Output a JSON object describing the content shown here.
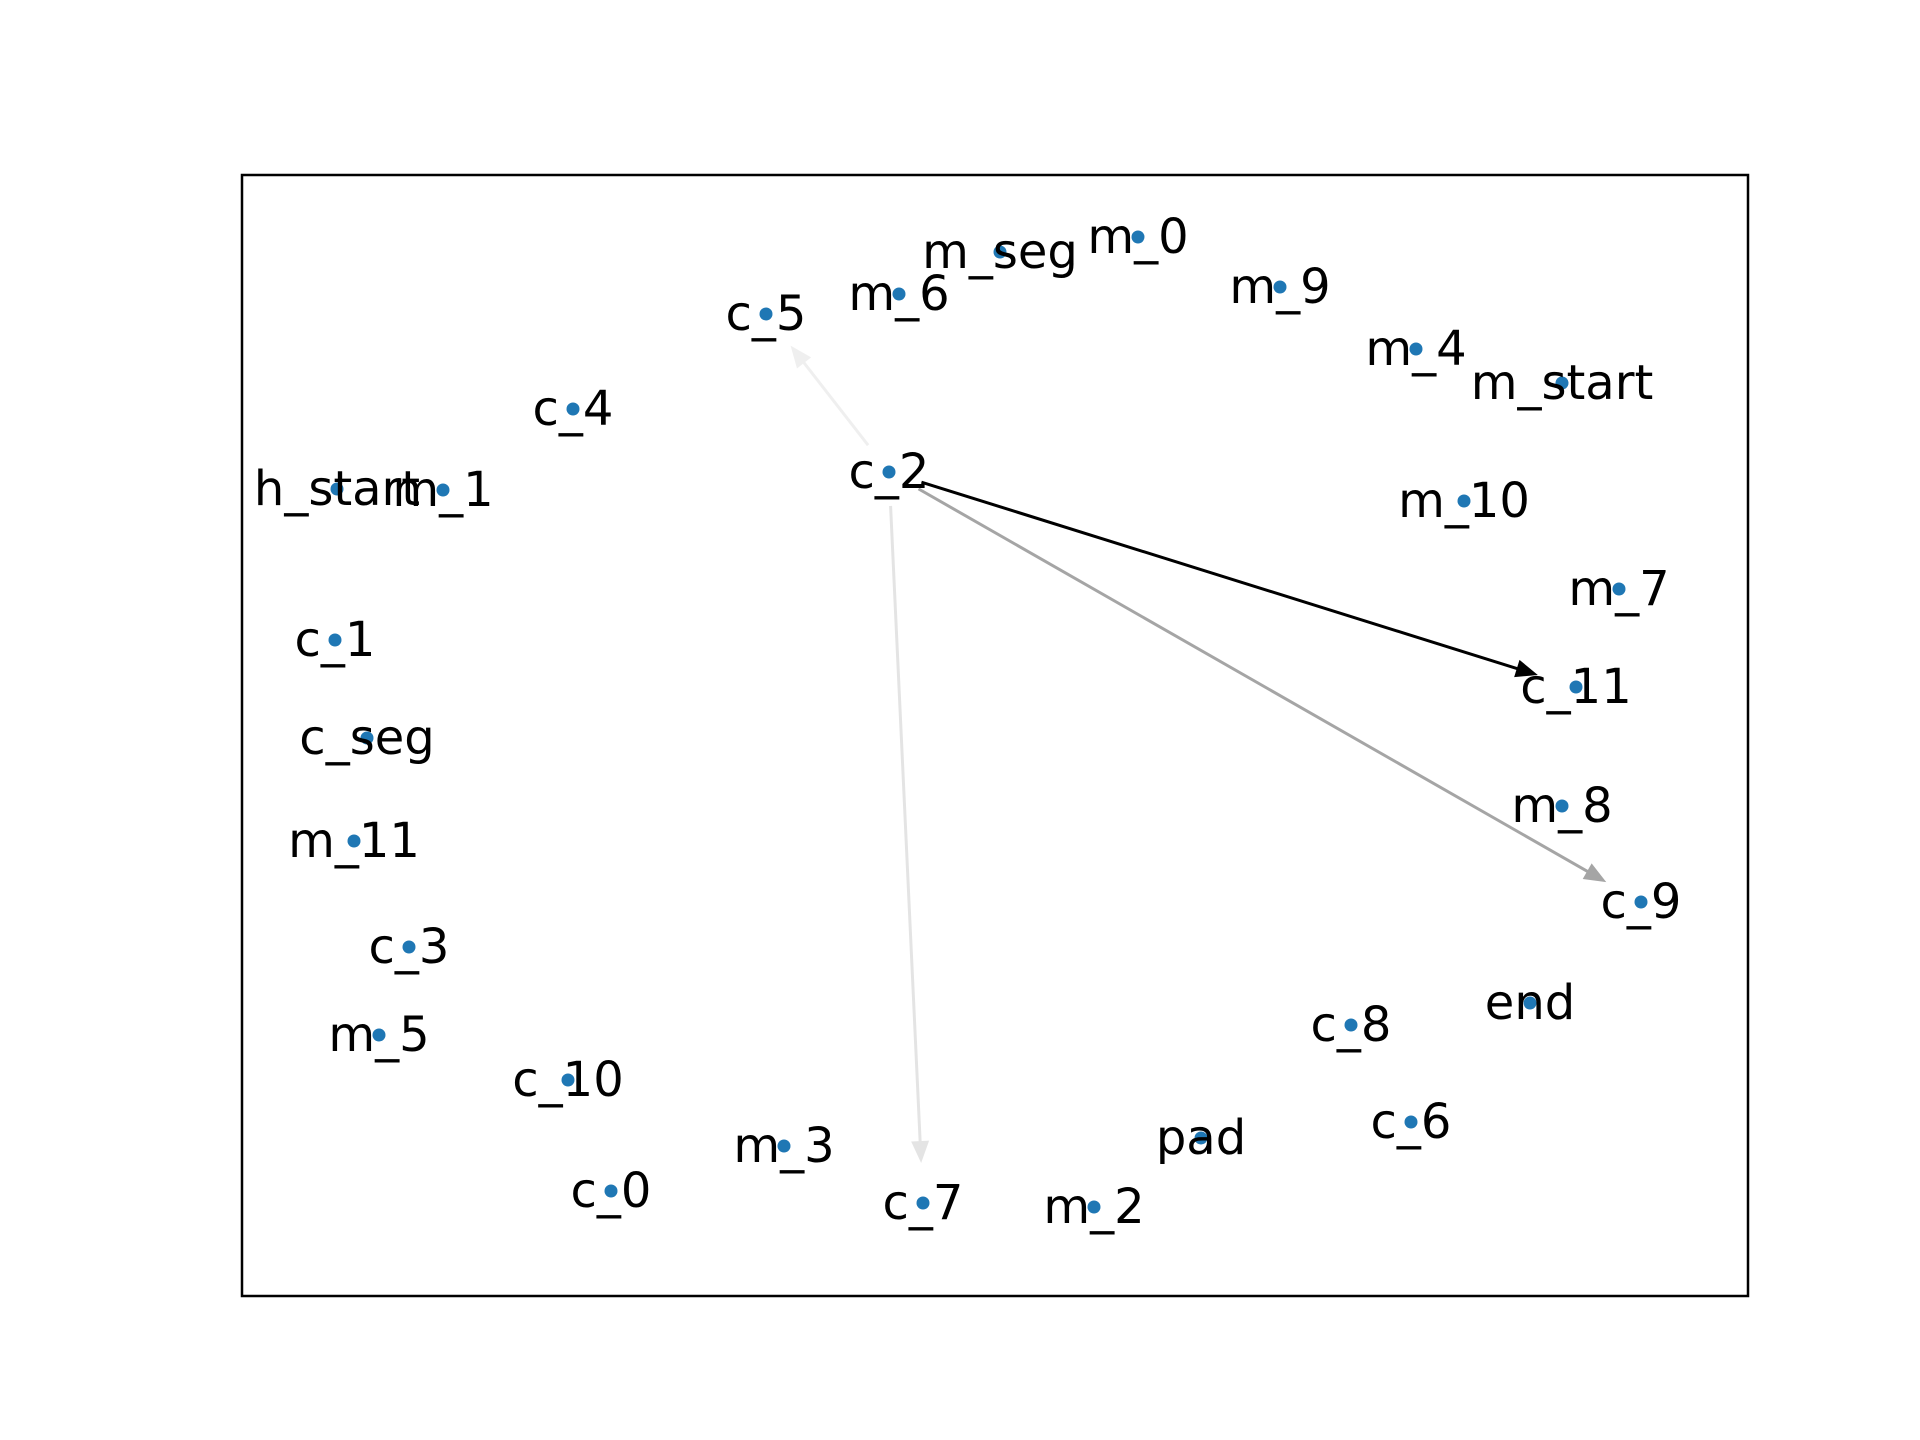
{
  "graph": {
    "node_color": "#1f77b4",
    "nodes": [
      {
        "id": "m_seg"
      },
      {
        "id": "m_0"
      },
      {
        "id": "m_9"
      },
      {
        "id": "m_6"
      },
      {
        "id": "c_5"
      },
      {
        "id": "m_4"
      },
      {
        "id": "m_start"
      },
      {
        "id": "c_4"
      },
      {
        "id": "c_2"
      },
      {
        "id": "h_start"
      },
      {
        "id": "m_1"
      },
      {
        "id": "m_10"
      },
      {
        "id": "m_7"
      },
      {
        "id": "c_1"
      },
      {
        "id": "c_11"
      },
      {
        "id": "c_seg"
      },
      {
        "id": "m_8"
      },
      {
        "id": "m_11"
      },
      {
        "id": "c_9"
      },
      {
        "id": "c_3"
      },
      {
        "id": "end"
      },
      {
        "id": "m_5"
      },
      {
        "id": "c_8"
      },
      {
        "id": "c_10"
      },
      {
        "id": "pad"
      },
      {
        "id": "c_6"
      },
      {
        "id": "m_3"
      },
      {
        "id": "c_0"
      },
      {
        "id": "c_7"
      },
      {
        "id": "m_2"
      }
    ],
    "edges": [
      {
        "source": "c_2",
        "target": "c_11",
        "color": "#000000",
        "opacity": 1.0
      },
      {
        "source": "c_2",
        "target": "c_9",
        "color": "#000000",
        "opacity": 0.35
      },
      {
        "source": "c_2",
        "target": "c_7",
        "color": "#000000",
        "opacity": 0.1
      },
      {
        "source": "c_2",
        "target": "c_5",
        "color": "#000000",
        "opacity": 0.06
      }
    ]
  }
}
